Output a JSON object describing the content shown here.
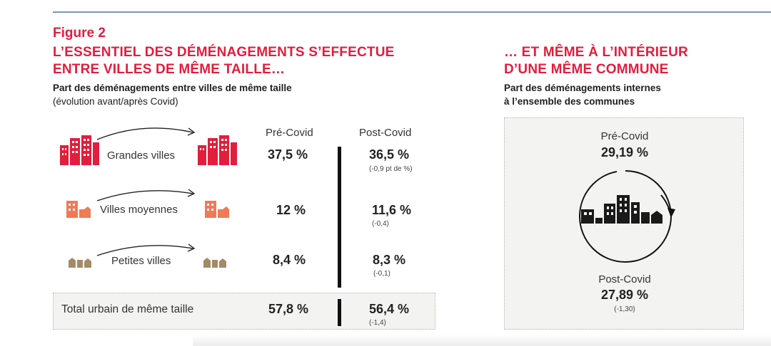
{
  "figure_label": "Figure 2",
  "left": {
    "title_line1": "L’ESSENTIEL DES DÉMÉNAGEMENTS S’EFFECTUE",
    "title_line2": "ENTRE VILLES DE MÊME TAILLE…",
    "subtitle_bold": "Part des déménagements entre villes de même taille",
    "subtitle_normal": "(évolution avant/après Covid)",
    "col_pre": "Pré-Covid",
    "col_post": "Post-Covid",
    "rows": [
      {
        "label": "Grandes villes",
        "pre": "37,5 %",
        "post": "36,5 %",
        "delta": "(-0,9 pt de %)"
      },
      {
        "label": "Villes moyennes",
        "pre": "12 %",
        "post": "11,6 %",
        "delta": "(-0,4)"
      },
      {
        "label": "Petites villes",
        "pre": "8,4 %",
        "post": "8,3 %",
        "delta": "(-0,1)"
      }
    ],
    "total": {
      "label": "Total urbain de même taille",
      "pre": "57,8 %",
      "post": "56,4 %",
      "delta": "(-1,4)"
    }
  },
  "right": {
    "title_line1": "… ET MÊME À L’INTÉRIEUR",
    "title_line2": "D’UNE MÊME COMMUNE",
    "subtitle_line1": "Part des déménagements internes",
    "subtitle_line2": "à l’ensemble des communes",
    "pre_label": "Pré-Covid",
    "pre_value": "29,19 %",
    "post_label": "Post-Covid",
    "post_value": "27,89 %",
    "post_delta": "(-1,30)"
  },
  "colors": {
    "accent_red": "#e11e3c",
    "large_city": "#e11e3c",
    "medium_city": "#f07a55",
    "small_city": "#a48a66",
    "rule": "#7a92c4"
  },
  "icons": [
    "large-city-icon",
    "medium-city-icon",
    "small-city-icon",
    "curved-arrow-icon",
    "city-cycle-icon"
  ]
}
